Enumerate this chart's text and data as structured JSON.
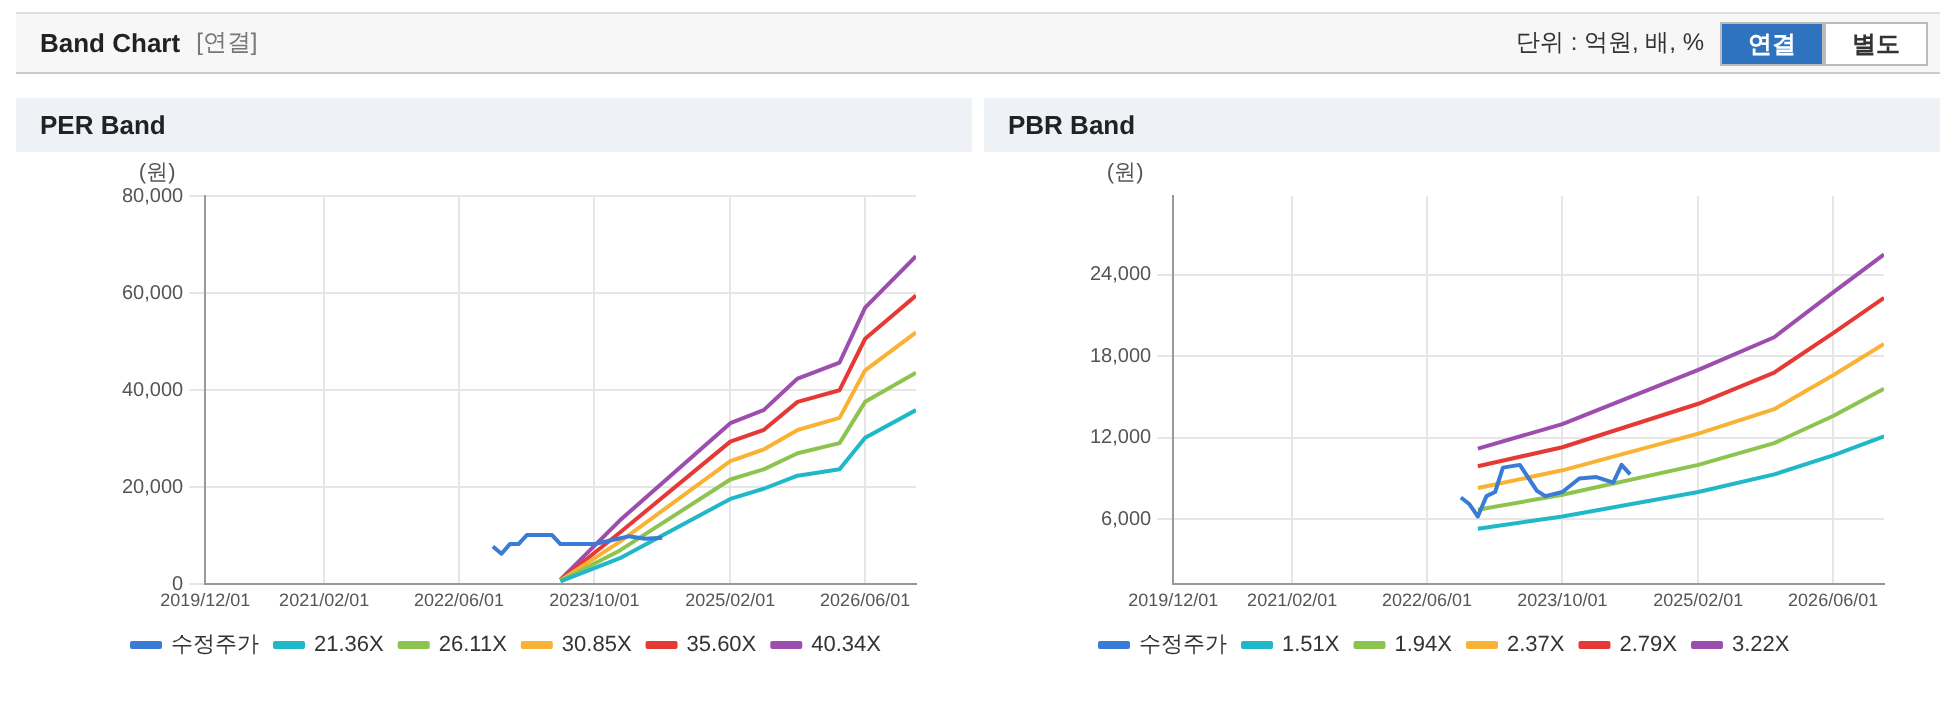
{
  "chart_data": [
    {
      "type": "other",
      "title": "Band Chart",
      "annotations": [
        "[연결]",
        "단위 : 억원, 배, %",
        "연결",
        "별도"
      ]
    },
    {
      "type": "line",
      "title": "PER Band",
      "ylabel": "(원)",
      "xlim": [
        "2019-12-01",
        "2026-12-01"
      ],
      "xticks": [
        {
          "value": "2019-12-01",
          "label": "2019/12/01"
        },
        {
          "value": "2021-02-01",
          "label": "2021/02/01"
        },
        {
          "value": "2022-06-01",
          "label": "2022/06/01"
        },
        {
          "value": "2023-10-01",
          "label": "2023/10/01"
        },
        {
          "value": "2025-02-01",
          "label": "2025/02/01"
        },
        {
          "value": "2026-06-01",
          "label": "2026/06/01"
        }
      ],
      "ylim": [
        0,
        80000
      ],
      "yticks": [
        0,
        {
          "value": 20000,
          "label": "20,000"
        },
        {
          "value": 40000,
          "label": "40,000"
        },
        {
          "value": 60000,
          "label": "60,000"
        },
        {
          "value": 80000,
          "label": "80,000"
        }
      ],
      "grid": true,
      "legend": "bottom",
      "marker": "none",
      "series": [
        {
          "name": "수정주가",
          "color": "#3a7bd5",
          "x": [
            "2022-10",
            "2022-11",
            "2022-12",
            "2023-01",
            "2023-02",
            "2023-05",
            "2023-06",
            "2023-10",
            "2023-12",
            "2024-02",
            "2024-04",
            "2024-06"
          ],
          "values": [
            7800,
            6300,
            8300,
            8300,
            10200,
            10200,
            8300,
            8300,
            9100,
            9900,
            9400,
            9600
          ]
        },
        {
          "name": "21.36X",
          "color": "#1fb8c9",
          "x": [
            "2023-06",
            "2024-01",
            "2025-02",
            "2025-06",
            "2025-10",
            "2026-03",
            "2026-06",
            "2026-12"
          ],
          "values": [
            600,
            5400,
            17600,
            19700,
            22400,
            23700,
            30200,
            35900
          ]
        },
        {
          "name": "26.11X",
          "color": "#8dc44f",
          "x": [
            "2023-06",
            "2024-01",
            "2025-02",
            "2025-06",
            "2025-10",
            "2026-03",
            "2026-06",
            "2026-12"
          ],
          "values": [
            700,
            7000,
            21600,
            23700,
            27000,
            29100,
            37600,
            43600
          ]
        },
        {
          "name": "30.85X",
          "color": "#f9b233",
          "x": [
            "2023-06",
            "2024-01",
            "2025-02",
            "2025-06",
            "2025-10",
            "2026-03",
            "2026-06",
            "2026-12"
          ],
          "values": [
            800,
            8800,
            25400,
            27800,
            31800,
            34300,
            44100,
            51900
          ]
        },
        {
          "name": "35.60X",
          "color": "#e53935",
          "x": [
            "2023-06",
            "2024-01",
            "2025-02",
            "2025-06",
            "2025-10",
            "2026-03",
            "2026-06",
            "2026-12"
          ],
          "values": [
            900,
            10700,
            29400,
            31800,
            37600,
            40000,
            50600,
            59500
          ]
        },
        {
          "name": "40.34X",
          "color": "#9c4dad",
          "x": [
            "2023-06",
            "2024-01",
            "2025-02",
            "2025-06",
            "2025-10",
            "2026-03",
            "2026-06",
            "2026-12"
          ],
          "values": [
            1000,
            13200,
            33200,
            35900,
            42400,
            45700,
            57000,
            67600
          ]
        }
      ]
    },
    {
      "type": "line",
      "title": "PBR Band",
      "ylabel": "(원)",
      "xlim": [
        "2019-12-01",
        "2026-12-01"
      ],
      "xticks": [
        {
          "value": "2019-12-01",
          "label": "2019/12/01"
        },
        {
          "value": "2021-02-01",
          "label": "2021/02/01"
        },
        {
          "value": "2022-06-01",
          "label": "2022/06/01"
        },
        {
          "value": "2023-10-01",
          "label": "2023/10/01"
        },
        {
          "value": "2025-02-01",
          "label": "2025/02/01"
        },
        {
          "value": "2026-06-01",
          "label": "2026/06/01"
        }
      ],
      "ylim": [
        1200,
        29800
      ],
      "yticks": [
        {
          "value": 6000,
          "label": "6,000"
        },
        {
          "value": 12000,
          "label": "12,000"
        },
        {
          "value": 18000,
          "label": "18,000"
        },
        {
          "value": 24000,
          "label": "24,000"
        }
      ],
      "grid": true,
      "legend": "bottom",
      "marker": "none",
      "series": [
        {
          "name": "수정주가",
          "color": "#3a7bd5",
          "x": [
            "2022-10",
            "2022-11",
            "2022-12",
            "2023-01",
            "2023-02",
            "2023-03",
            "2023-05",
            "2023-07",
            "2023-08",
            "2023-10",
            "2023-12",
            "2024-02",
            "2024-04",
            "2024-05",
            "2024-06"
          ],
          "values": [
            7600,
            7100,
            6200,
            7700,
            8000,
            9800,
            10000,
            8100,
            7700,
            8000,
            9000,
            9100,
            8700,
            10000,
            9300
          ]
        },
        {
          "name": "1.51X",
          "color": "#1fb8c9",
          "x": [
            "2022-12",
            "2023-10",
            "2025-02",
            "2025-11",
            "2026-06",
            "2026-12"
          ],
          "values": [
            5300,
            6200,
            8000,
            9300,
            10700,
            12100
          ]
        },
        {
          "name": "1.94X",
          "color": "#8dc44f",
          "x": [
            "2022-12",
            "2023-10",
            "2025-02",
            "2025-11",
            "2026-06",
            "2026-12"
          ],
          "values": [
            6700,
            7800,
            10000,
            11600,
            13600,
            15600
          ]
        },
        {
          "name": "2.37X",
          "color": "#f9b233",
          "x": [
            "2022-12",
            "2023-10",
            "2025-02",
            "2025-11",
            "2026-06",
            "2026-12"
          ],
          "values": [
            8300,
            9600,
            12300,
            14100,
            16600,
            18900
          ]
        },
        {
          "name": "2.79X",
          "color": "#e53935",
          "x": [
            "2022-12",
            "2023-10",
            "2025-02",
            "2025-11",
            "2026-06",
            "2026-12"
          ],
          "values": [
            9900,
            11300,
            14500,
            16800,
            19700,
            22300
          ]
        },
        {
          "name": "3.22X",
          "color": "#9c4dad",
          "x": [
            "2022-12",
            "2023-10",
            "2025-02",
            "2025-11",
            "2026-06",
            "2026-12"
          ],
          "values": [
            11200,
            13000,
            17000,
            19400,
            22700,
            25500
          ]
        }
      ]
    }
  ]
}
